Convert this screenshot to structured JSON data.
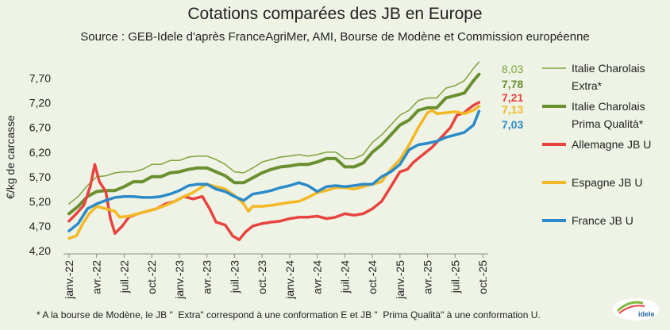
{
  "chart_data": {
    "type": "line",
    "title": "Cotations comparées des JB en Europe",
    "subtitle": "Source : GEB-Idele d'après FranceAgriMer, AMI, Bourse de Modène et Commission européenne",
    "ylabel": "€/kg de carcasse",
    "xlabel": "",
    "ylim": [
      4.2,
      8.0
    ],
    "yticks": [
      "4,20",
      "4,70",
      "5,20",
      "5,70",
      "6,20",
      "6,70",
      "7,20",
      "7,70"
    ],
    "ytick_values": [
      4.2,
      4.7,
      5.2,
      5.7,
      6.2,
      6.7,
      7.2,
      7.7
    ],
    "xticks": [
      "janv.-22",
      "avr.-22",
      "juil.-22",
      "oct.-22",
      "janv.-23",
      "avr.-23",
      "juil.-23",
      "oct.-23",
      "janv.-24",
      "avr.-24",
      "juil.-24",
      "oct.-24",
      "janv.-25",
      "avr.-25",
      "juil.-25",
      "oct.-25"
    ],
    "xtick_values": [
      0,
      3,
      6,
      9,
      12,
      15,
      18,
      21,
      24,
      27,
      30,
      33,
      36,
      39,
      42,
      45
    ],
    "x_unit": "months since janv.-22",
    "grid": false,
    "legend_position": "right",
    "series": [
      {
        "name": "Italie Charolais Extra*",
        "color": "#7fa33a",
        "end_label": "8,03",
        "points": [
          [
            0,
            5.15
          ],
          [
            1,
            5.3
          ],
          [
            2,
            5.52
          ],
          [
            3,
            5.7
          ],
          [
            4,
            5.72
          ],
          [
            5,
            5.78
          ],
          [
            6,
            5.8
          ],
          [
            7,
            5.8
          ],
          [
            8,
            5.85
          ],
          [
            9,
            5.95
          ],
          [
            10,
            5.95
          ],
          [
            11,
            6.03
          ],
          [
            12,
            6.03
          ],
          [
            13,
            6.1
          ],
          [
            14,
            6.12
          ],
          [
            15,
            6.12
          ],
          [
            16,
            6.05
          ],
          [
            17,
            5.95
          ],
          [
            18,
            5.8
          ],
          [
            19,
            5.78
          ],
          [
            20,
            5.88
          ],
          [
            21,
            6.0
          ],
          [
            22,
            6.05
          ],
          [
            23,
            6.1
          ],
          [
            24,
            6.12
          ],
          [
            25,
            6.15
          ],
          [
            26,
            6.12
          ],
          [
            27,
            6.15
          ],
          [
            28,
            6.2
          ],
          [
            29,
            6.2
          ],
          [
            30,
            6.07
          ],
          [
            31,
            6.07
          ],
          [
            32,
            6.15
          ],
          [
            33,
            6.4
          ],
          [
            34,
            6.55
          ],
          [
            35,
            6.75
          ],
          [
            36,
            6.95
          ],
          [
            37,
            7.05
          ],
          [
            38,
            7.25
          ],
          [
            39,
            7.3
          ],
          [
            40,
            7.3
          ],
          [
            41,
            7.5
          ],
          [
            42,
            7.55
          ],
          [
            43,
            7.65
          ],
          [
            44,
            7.9
          ],
          [
            44.6,
            8.03
          ]
        ]
      },
      {
        "name": "Italie Charolais Prima Qualità*",
        "color": "#6a8f2e",
        "end_label": "7,78",
        "points": [
          [
            0,
            4.95
          ],
          [
            1,
            5.1
          ],
          [
            2,
            5.3
          ],
          [
            3,
            5.4
          ],
          [
            4,
            5.42
          ],
          [
            5,
            5.42
          ],
          [
            6,
            5.5
          ],
          [
            7,
            5.6
          ],
          [
            8,
            5.6
          ],
          [
            9,
            5.7
          ],
          [
            10,
            5.7
          ],
          [
            11,
            5.78
          ],
          [
            12,
            5.8
          ],
          [
            13,
            5.85
          ],
          [
            14,
            5.88
          ],
          [
            15,
            5.88
          ],
          [
            16,
            5.8
          ],
          [
            17,
            5.72
          ],
          [
            18,
            5.58
          ],
          [
            19,
            5.58
          ],
          [
            20,
            5.68
          ],
          [
            21,
            5.78
          ],
          [
            22,
            5.85
          ],
          [
            23,
            5.9
          ],
          [
            24,
            5.92
          ],
          [
            25,
            5.95
          ],
          [
            26,
            5.95
          ],
          [
            27,
            6.0
          ],
          [
            28,
            6.07
          ],
          [
            29,
            6.07
          ],
          [
            30,
            5.9
          ],
          [
            31,
            5.9
          ],
          [
            32,
            5.98
          ],
          [
            33,
            6.2
          ],
          [
            34,
            6.35
          ],
          [
            35,
            6.55
          ],
          [
            36,
            6.75
          ],
          [
            37,
            6.85
          ],
          [
            38,
            7.05
          ],
          [
            39,
            7.1
          ],
          [
            40,
            7.1
          ],
          [
            41,
            7.3
          ],
          [
            42,
            7.35
          ],
          [
            43,
            7.4
          ],
          [
            44,
            7.65
          ],
          [
            44.6,
            7.78
          ]
        ]
      },
      {
        "name": "Allemagne JB U",
        "color": "#e8433f",
        "end_label": "7,21",
        "points": [
          [
            0,
            4.8
          ],
          [
            0.8,
            4.95
          ],
          [
            1.6,
            5.12
          ],
          [
            2.3,
            5.5
          ],
          [
            2.8,
            5.95
          ],
          [
            3.3,
            5.6
          ],
          [
            4,
            5.4
          ],
          [
            4.5,
            4.85
          ],
          [
            5,
            4.55
          ],
          [
            5.8,
            4.7
          ],
          [
            6.5,
            4.88
          ],
          [
            7.5,
            4.95
          ],
          [
            8.5,
            5.0
          ],
          [
            9.5,
            5.05
          ],
          [
            10.5,
            5.15
          ],
          [
            11.5,
            5.2
          ],
          [
            12.5,
            5.3
          ],
          [
            13.5,
            5.25
          ],
          [
            14.5,
            5.3
          ],
          [
            15.3,
            5.05
          ],
          [
            16,
            4.78
          ],
          [
            17,
            4.72
          ],
          [
            17.8,
            4.5
          ],
          [
            18.5,
            4.42
          ],
          [
            19.2,
            4.58
          ],
          [
            20,
            4.7
          ],
          [
            21,
            4.75
          ],
          [
            22,
            4.78
          ],
          [
            23,
            4.8
          ],
          [
            24,
            4.85
          ],
          [
            25,
            4.88
          ],
          [
            26,
            4.88
          ],
          [
            27,
            4.9
          ],
          [
            28,
            4.85
          ],
          [
            29,
            4.88
          ],
          [
            30,
            4.95
          ],
          [
            31,
            4.92
          ],
          [
            32,
            4.95
          ],
          [
            33,
            5.05
          ],
          [
            34,
            5.2
          ],
          [
            35,
            5.5
          ],
          [
            36,
            5.8
          ],
          [
            36.8,
            5.85
          ],
          [
            37.5,
            6.0
          ],
          [
            38.5,
            6.15
          ],
          [
            39.5,
            6.3
          ],
          [
            40.5,
            6.5
          ],
          [
            41.5,
            6.7
          ],
          [
            42.2,
            6.95
          ],
          [
            43,
            7.0
          ],
          [
            43.5,
            7.08
          ],
          [
            44,
            7.15
          ],
          [
            44.6,
            7.21
          ]
        ]
      },
      {
        "name": "Espagne JB U",
        "color": "#f4b824",
        "end_label": "7,13",
        "points": [
          [
            0,
            4.45
          ],
          [
            0.8,
            4.5
          ],
          [
            1.5,
            4.75
          ],
          [
            2.2,
            4.95
          ],
          [
            3,
            5.1
          ],
          [
            4,
            5.05
          ],
          [
            5,
            5.0
          ],
          [
            5.5,
            4.88
          ],
          [
            6.5,
            4.9
          ],
          [
            7.5,
            4.95
          ],
          [
            8.5,
            5.0
          ],
          [
            9.5,
            5.05
          ],
          [
            10.5,
            5.12
          ],
          [
            11.5,
            5.2
          ],
          [
            12.5,
            5.3
          ],
          [
            13.5,
            5.38
          ],
          [
            14.5,
            5.5
          ],
          [
            15,
            5.55
          ],
          [
            16,
            5.5
          ],
          [
            17,
            5.45
          ],
          [
            18,
            5.32
          ],
          [
            19,
            5.15
          ],
          [
            19.5,
            5.0
          ],
          [
            20,
            5.1
          ],
          [
            21,
            5.1
          ],
          [
            22,
            5.12
          ],
          [
            23,
            5.15
          ],
          [
            24,
            5.18
          ],
          [
            25,
            5.2
          ],
          [
            26,
            5.28
          ],
          [
            27,
            5.38
          ],
          [
            28,
            5.42
          ],
          [
            29,
            5.48
          ],
          [
            30,
            5.48
          ],
          [
            31,
            5.45
          ],
          [
            32,
            5.5
          ],
          [
            33,
            5.55
          ],
          [
            34,
            5.6
          ],
          [
            35,
            5.85
          ],
          [
            36,
            6.05
          ],
          [
            37,
            6.35
          ],
          [
            38,
            6.7
          ],
          [
            39,
            7.0
          ],
          [
            39.5,
            7.05
          ],
          [
            40,
            6.98
          ],
          [
            41,
            7.0
          ],
          [
            42,
            7.02
          ],
          [
            43,
            6.98
          ],
          [
            44,
            7.05
          ],
          [
            44.6,
            7.13
          ]
        ]
      },
      {
        "name": "France JB U",
        "color": "#2b8ac8",
        "end_label": "7,03",
        "points": [
          [
            0,
            4.6
          ],
          [
            1,
            4.75
          ],
          [
            2,
            5.05
          ],
          [
            3,
            5.15
          ],
          [
            4,
            5.22
          ],
          [
            5,
            5.28
          ],
          [
            6,
            5.3
          ],
          [
            7,
            5.3
          ],
          [
            8,
            5.28
          ],
          [
            9,
            5.28
          ],
          [
            10,
            5.3
          ],
          [
            11,
            5.35
          ],
          [
            12,
            5.42
          ],
          [
            13,
            5.52
          ],
          [
            14,
            5.55
          ],
          [
            15,
            5.55
          ],
          [
            16,
            5.45
          ],
          [
            17,
            5.4
          ],
          [
            18,
            5.3
          ],
          [
            19,
            5.22
          ],
          [
            20,
            5.35
          ],
          [
            21,
            5.38
          ],
          [
            22,
            5.42
          ],
          [
            23,
            5.48
          ],
          [
            24,
            5.52
          ],
          [
            25,
            5.58
          ],
          [
            26,
            5.52
          ],
          [
            27,
            5.4
          ],
          [
            28,
            5.5
          ],
          [
            29,
            5.52
          ],
          [
            30,
            5.5
          ],
          [
            31,
            5.52
          ],
          [
            32,
            5.55
          ],
          [
            33,
            5.55
          ],
          [
            34,
            5.7
          ],
          [
            35,
            5.8
          ],
          [
            36,
            5.95
          ],
          [
            37,
            6.25
          ],
          [
            38,
            6.35
          ],
          [
            39,
            6.38
          ],
          [
            40,
            6.42
          ],
          [
            41,
            6.5
          ],
          [
            42,
            6.55
          ],
          [
            43,
            6.6
          ],
          [
            44,
            6.75
          ],
          [
            44.6,
            7.03
          ]
        ]
      }
    ],
    "legend": [
      {
        "label": "Italie Charolais Extra*",
        "color": "#7fa33a",
        "width": 1.5
      },
      {
        "label": "Italie Charolais Prima Qualità*",
        "color": "#6a8f2e",
        "width": 4
      },
      {
        "label": "Allemagne JB U",
        "color": "#e8433f",
        "width": 4
      },
      {
        "label": "Espagne JB U",
        "color": "#f4b824",
        "width": 4
      },
      {
        "label": "France JB U",
        "color": "#2b8ac8",
        "width": 4
      }
    ]
  },
  "legend_lines": [
    [
      "Italie Charolais",
      "Extra*"
    ],
    [
      "Italie Charolais",
      "Prima Qualità*"
    ],
    [
      "Allemagne JB U"
    ],
    [
      "Espagne JB U"
    ],
    [
      "France JB U"
    ]
  ],
  "footnote": "* A la bourse de Modène, le JB \"  Extra\" correspond à une conformation E et JB \"  Prima Qualità\" à une conformation U.",
  "logo": {
    "text": "idele"
  },
  "icons": {
    "logo": "idele-logo"
  }
}
